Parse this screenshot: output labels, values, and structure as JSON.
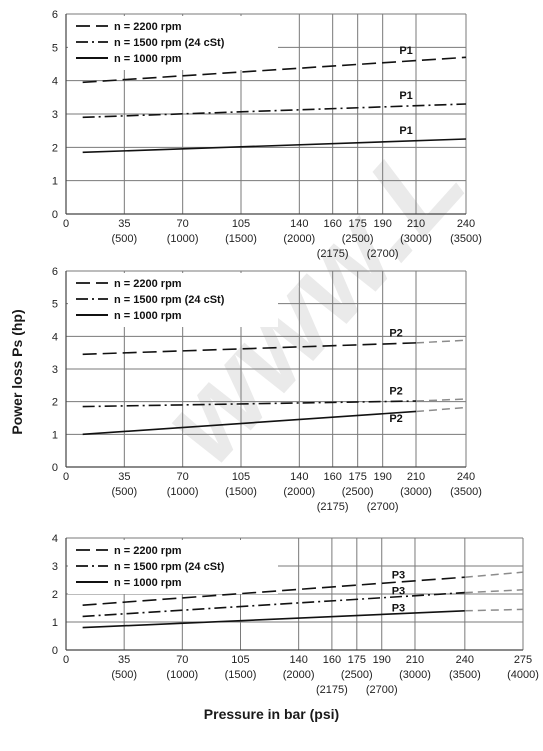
{
  "ylabel": "Power loss Ps (hp)",
  "xlabel": "Pressure in bar (psi)",
  "watermark": "www.L",
  "colors": {
    "grid": "#7a7a7a",
    "series": "#111111",
    "series_ext": "#8c8c8c",
    "watermark": "#d9d9d9"
  },
  "chart_data": [
    {
      "type": "line",
      "panel": "P1",
      "ylim": [
        0,
        6
      ],
      "yticks": [
        0,
        1,
        2,
        3,
        4,
        5,
        6
      ],
      "xlim": [
        0,
        240
      ],
      "xticks": [
        {
          "bar": 0,
          "bar_label": "0",
          "psi": ""
        },
        {
          "bar": 35,
          "bar_label": "35",
          "psi": "(500)"
        },
        {
          "bar": 70,
          "bar_label": "70",
          "psi": "(1000)"
        },
        {
          "bar": 105,
          "bar_label": "105",
          "psi": "(1500)"
        },
        {
          "bar": 140,
          "bar_label": "140",
          "psi": "(2000)"
        },
        {
          "bar": 160,
          "bar_label": "160",
          "psi": "(2175)",
          "psi_row": 2
        },
        {
          "bar": 175,
          "bar_label": "175",
          "psi": "(2500)"
        },
        {
          "bar": 190,
          "bar_label": "190",
          "psi": "(2700)",
          "psi_row": 2
        },
        {
          "bar": 210,
          "bar_label": "210",
          "psi": "(3000)"
        },
        {
          "bar": 240,
          "bar_label": "240",
          "psi": "(3500)"
        }
      ],
      "grid": true,
      "legend": [
        {
          "label": "n = 2200 rpm",
          "style": "long-dash"
        },
        {
          "label": "n = 1500 rpm   (24 cSt)",
          "style": "dash-dot"
        },
        {
          "label": "n = 1000 rpm",
          "style": "solid"
        }
      ],
      "series": [
        {
          "rpm": "2200",
          "style": "long-dash",
          "x": [
            10,
            240
          ],
          "y": [
            3.95,
            4.7
          ]
        },
        {
          "rpm": "1500",
          "style": "dash-dot",
          "x": [
            10,
            240
          ],
          "y": [
            2.9,
            3.3
          ]
        },
        {
          "rpm": "1000",
          "style": "solid",
          "x": [
            10,
            240
          ],
          "y": [
            1.85,
            2.25
          ]
        }
      ],
      "labels": [
        {
          "text": "P1",
          "x": 200,
          "y": 4.8
        },
        {
          "text": "P1",
          "x": 200,
          "y": 3.45
        },
        {
          "text": "P1",
          "x": 200,
          "y": 2.4
        }
      ]
    },
    {
      "type": "line",
      "panel": "P2",
      "ylim": [
        0,
        6
      ],
      "yticks": [
        0,
        1,
        2,
        3,
        4,
        5,
        6
      ],
      "xlim": [
        0,
        240
      ],
      "xticks": [
        {
          "bar": 0,
          "bar_label": "0",
          "psi": ""
        },
        {
          "bar": 35,
          "bar_label": "35",
          "psi": "(500)"
        },
        {
          "bar": 70,
          "bar_label": "70",
          "psi": "(1000)"
        },
        {
          "bar": 105,
          "bar_label": "105",
          "psi": "(1500)"
        },
        {
          "bar": 140,
          "bar_label": "140",
          "psi": "(2000)"
        },
        {
          "bar": 160,
          "bar_label": "160",
          "psi": "(2175)",
          "psi_row": 2
        },
        {
          "bar": 175,
          "bar_label": "175",
          "psi": "(2500)"
        },
        {
          "bar": 190,
          "bar_label": "190",
          "psi": "(2700)",
          "psi_row": 2
        },
        {
          "bar": 210,
          "bar_label": "210",
          "psi": "(3000)"
        },
        {
          "bar": 240,
          "bar_label": "240",
          "psi": "(3500)"
        }
      ],
      "grid": true,
      "legend": [
        {
          "label": "n = 2200 rpm",
          "style": "long-dash"
        },
        {
          "label": "n = 1500 rpm   (24 cSt)",
          "style": "dash-dot"
        },
        {
          "label": "n = 1000 rpm",
          "style": "solid"
        }
      ],
      "series": [
        {
          "rpm": "2200",
          "style": "long-dash",
          "x": [
            10,
            210
          ],
          "y": [
            3.45,
            3.8
          ],
          "ext_x": [
            210,
            240
          ],
          "ext_y": [
            3.8,
            3.88
          ]
        },
        {
          "rpm": "1500",
          "style": "dash-dot",
          "x": [
            10,
            210
          ],
          "y": [
            1.85,
            2.02
          ],
          "ext_x": [
            210,
            240
          ],
          "ext_y": [
            2.02,
            2.08
          ]
        },
        {
          "rpm": "1000",
          "style": "solid",
          "x": [
            10,
            210
          ],
          "y": [
            1.0,
            1.7
          ],
          "ext_x": [
            210,
            240
          ],
          "ext_y": [
            1.7,
            1.82
          ]
        }
      ],
      "labels": [
        {
          "text": "P2",
          "x": 194,
          "y": 4.0
        },
        {
          "text": "P2",
          "x": 194,
          "y": 2.22
        },
        {
          "text": "P2",
          "x": 194,
          "y": 1.38
        }
      ]
    },
    {
      "type": "line",
      "panel": "P3",
      "ylim": [
        0,
        4
      ],
      "yticks": [
        0,
        1,
        2,
        3,
        4
      ],
      "xlim": [
        0,
        275
      ],
      "xticks": [
        {
          "bar": 0,
          "bar_label": "0",
          "psi": ""
        },
        {
          "bar": 35,
          "bar_label": "35",
          "psi": "(500)"
        },
        {
          "bar": 70,
          "bar_label": "70",
          "psi": "(1000)"
        },
        {
          "bar": 105,
          "bar_label": "105",
          "psi": "(1500)"
        },
        {
          "bar": 140,
          "bar_label": "140",
          "psi": "(2000)"
        },
        {
          "bar": 160,
          "bar_label": "160",
          "psi": "(2175)",
          "psi_row": 2
        },
        {
          "bar": 175,
          "bar_label": "175",
          "psi": "(2500)"
        },
        {
          "bar": 190,
          "bar_label": "190",
          "psi": "(2700)",
          "psi_row": 2
        },
        {
          "bar": 210,
          "bar_label": "210",
          "psi": "(3000)"
        },
        {
          "bar": 240,
          "bar_label": "240",
          "psi": "(3500)"
        },
        {
          "bar": 275,
          "bar_label": "275",
          "psi": "(4000)"
        }
      ],
      "grid": true,
      "legend": [
        {
          "label": "n = 2200 rpm",
          "style": "long-dash"
        },
        {
          "label": "n = 1500 rpm   (24 cSt)",
          "style": "dash-dot"
        },
        {
          "label": "n = 1000 rpm",
          "style": "solid"
        }
      ],
      "series": [
        {
          "rpm": "2200",
          "style": "long-dash",
          "x": [
            10,
            240
          ],
          "y": [
            1.6,
            2.6
          ],
          "ext_x": [
            240,
            275
          ],
          "ext_y": [
            2.6,
            2.78
          ]
        },
        {
          "rpm": "1500",
          "style": "dash-dot",
          "x": [
            10,
            240
          ],
          "y": [
            1.2,
            2.05
          ],
          "ext_x": [
            240,
            275
          ],
          "ext_y": [
            2.05,
            2.15
          ]
        },
        {
          "rpm": "1000",
          "style": "solid",
          "x": [
            10,
            240
          ],
          "y": [
            0.8,
            1.4
          ],
          "ext_x": [
            240,
            275
          ],
          "ext_y": [
            1.4,
            1.45
          ]
        }
      ],
      "labels": [
        {
          "text": "P3",
          "x": 196,
          "y": 2.55
        },
        {
          "text": "P3",
          "x": 196,
          "y": 1.98
        },
        {
          "text": "P3",
          "x": 196,
          "y": 1.38
        }
      ]
    }
  ]
}
